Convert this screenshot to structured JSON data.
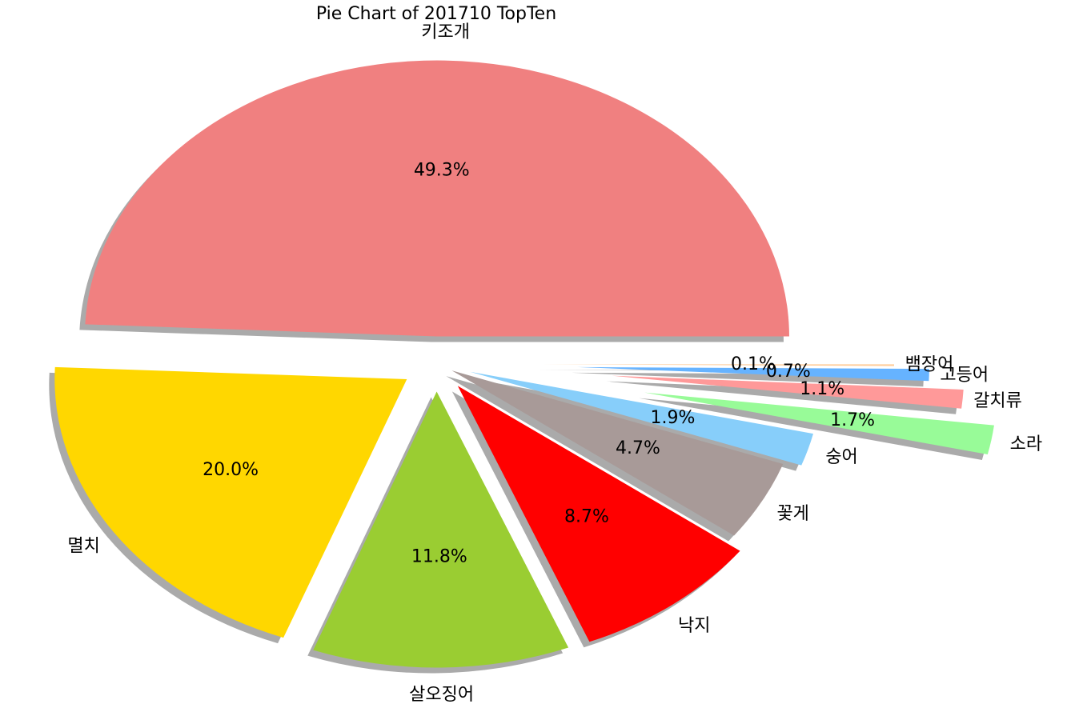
{
  "chart_data": {
    "type": "pie",
    "title": "Pie Chart of 201710 TopTen",
    "categories": [
      "키조개",
      "멸치",
      "살오징어",
      "낙지",
      "꽃게",
      "숭어",
      "소라",
      "갈치류",
      "고등어",
      "뱀장어"
    ],
    "values": [
      49.3,
      20.0,
      11.8,
      8.7,
      4.7,
      1.9,
      1.7,
      1.1,
      0.7,
      0.1
    ],
    "value_labels": [
      "49.3%",
      "20.0%",
      "11.8%",
      "8.7%",
      "4.7%",
      "1.9%",
      "1.7%",
      "1.1%",
      "0.7%",
      "0.1%"
    ],
    "colors": [
      "#f08080",
      "#ffd700",
      "#9acd32",
      "#ff0000",
      "#a89a98",
      "#87cefa",
      "#98fb98",
      "#ff9999",
      "#66b3ff",
      "#ffcc99"
    ],
    "shadow": true
  }
}
